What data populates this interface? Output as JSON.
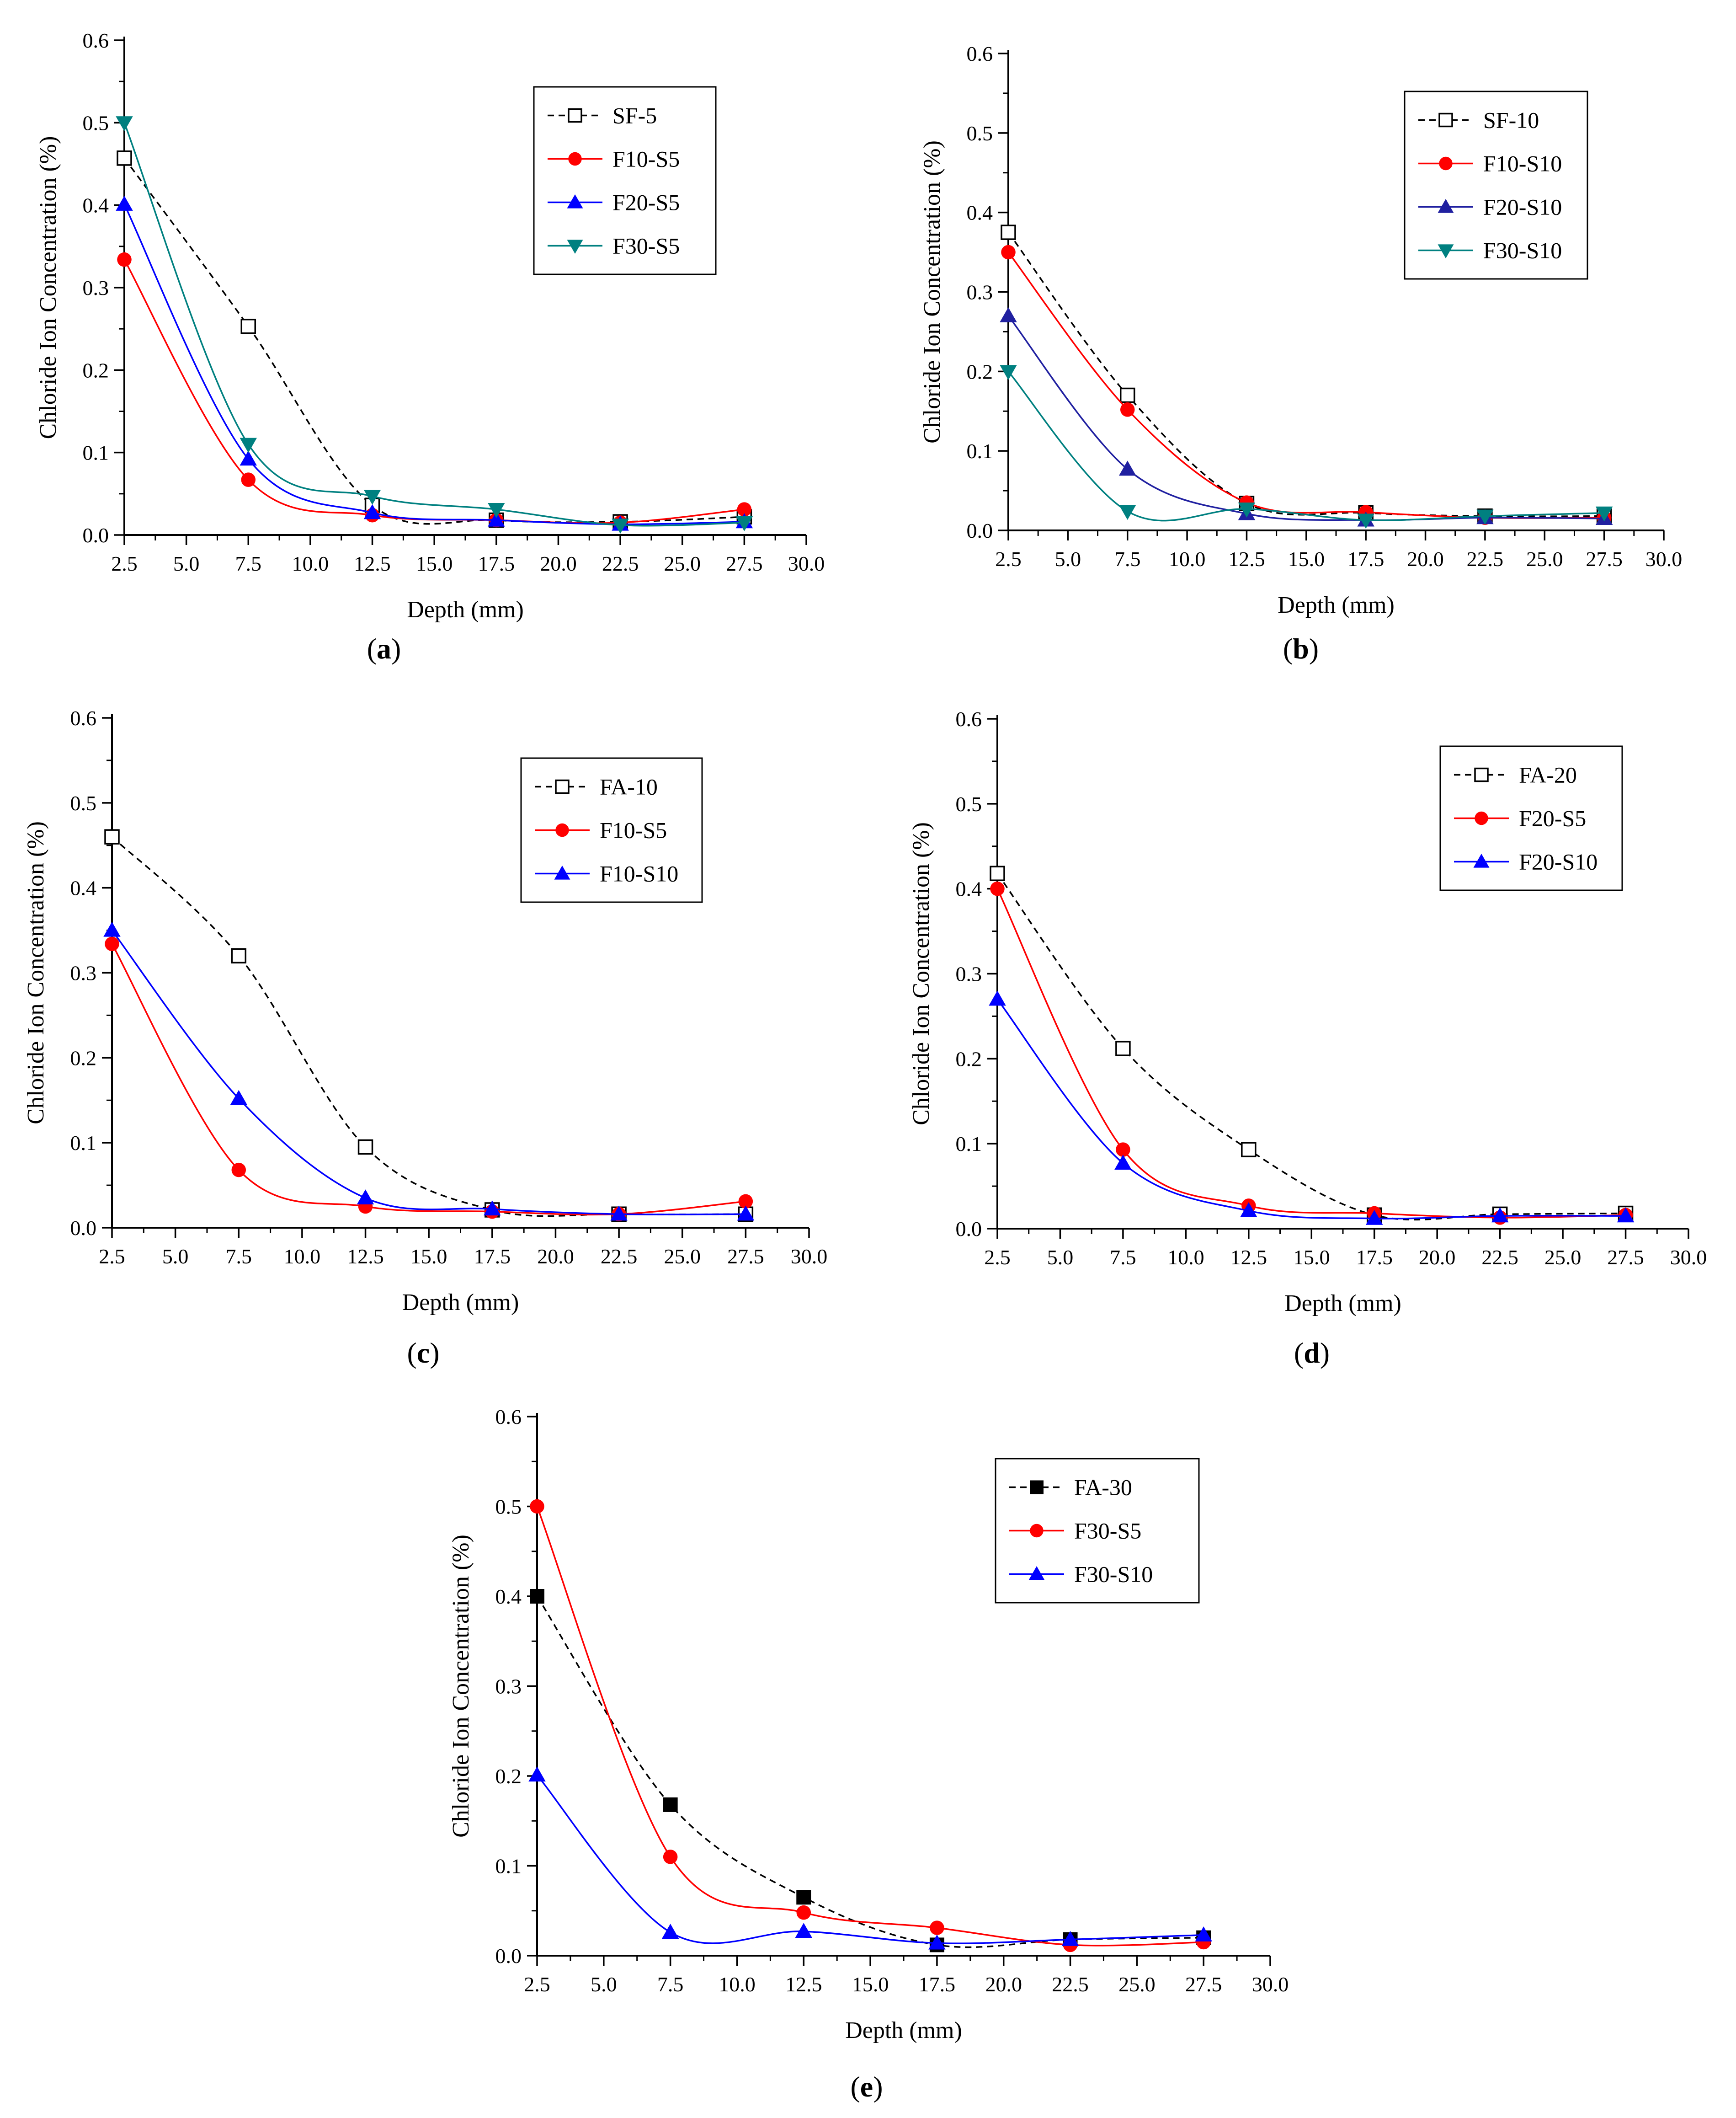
{
  "chart_data": [
    {
      "type": "line",
      "panel_label": "a",
      "xlabel": "Depth (mm)",
      "ylabel": "Chloride Ion Concentration (%)",
      "xlim": [
        2.5,
        30.0
      ],
      "ylim": [
        0.0,
        0.6
      ],
      "xticks": [
        "2.5",
        "5.0",
        "7.5",
        "10.0",
        "12.5",
        "15.0",
        "17.5",
        "20.0",
        "22.5",
        "25.0",
        "27.5",
        "30.0"
      ],
      "yticks": [
        "0.0",
        "0.1",
        "0.2",
        "0.3",
        "0.4",
        "0.5",
        "0.6"
      ],
      "legend_position": "top-right",
      "x": [
        2.5,
        7.5,
        12.5,
        17.5,
        22.5,
        27.5
      ],
      "series": [
        {
          "name": "SF-5",
          "values": [
            0.457,
            0.253,
            0.036,
            0.018,
            0.016,
            0.022
          ],
          "color": "#000000",
          "marker": "square-open",
          "dashed": true
        },
        {
          "name": "F10-S5",
          "values": [
            0.334,
            0.067,
            0.024,
            0.018,
            0.015,
            0.031
          ],
          "color": "#ff0000",
          "marker": "circle",
          "dashed": false
        },
        {
          "name": "F20-S5",
          "values": [
            0.401,
            0.092,
            0.027,
            0.018,
            0.013,
            0.016
          ],
          "color": "#0000ff",
          "marker": "triangle-up",
          "dashed": false
        },
        {
          "name": "F30-S5",
          "values": [
            0.5,
            0.11,
            0.047,
            0.031,
            0.012,
            0.015
          ],
          "color": "#008080",
          "marker": "triangle-down",
          "dashed": false
        }
      ]
    },
    {
      "type": "line",
      "panel_label": "b",
      "xlabel": "Depth (mm)",
      "ylabel": "Chloride Ion Concentration (%)",
      "xlim": [
        2.5,
        30.0
      ],
      "ylim": [
        0.0,
        0.6
      ],
      "xticks": [
        "2.5",
        "5.0",
        "7.5",
        "10.0",
        "12.5",
        "15.0",
        "17.5",
        "20.0",
        "22.5",
        "25.0",
        "27.5",
        "30.0"
      ],
      "yticks": [
        "0.0",
        "0.1",
        "0.2",
        "0.3",
        "0.4",
        "0.5",
        "0.6"
      ],
      "legend_position": "top-right",
      "x": [
        2.5,
        7.5,
        12.5,
        17.5,
        22.5,
        27.5
      ],
      "series": [
        {
          "name": "SF-10",
          "values": [
            0.375,
            0.17,
            0.034,
            0.022,
            0.018,
            0.018
          ],
          "color": "#000000",
          "marker": "square-open",
          "dashed": true
        },
        {
          "name": "F10-S10",
          "values": [
            0.35,
            0.152,
            0.035,
            0.023,
            0.016,
            0.016
          ],
          "color": "#ff0000",
          "marker": "circle",
          "dashed": false
        },
        {
          "name": "F20-S10",
          "values": [
            0.27,
            0.077,
            0.021,
            0.013,
            0.016,
            0.015
          ],
          "color": "#2020a0",
          "marker": "triangle-up",
          "dashed": false
        },
        {
          "name": "F30-S10",
          "values": [
            0.2,
            0.024,
            0.027,
            0.013,
            0.018,
            0.022
          ],
          "color": "#008080",
          "marker": "triangle-down",
          "dashed": false
        }
      ]
    },
    {
      "type": "line",
      "panel_label": "c",
      "xlabel": "Depth (mm)",
      "ylabel": "Chloride Ion Concentration (%)",
      "xlim": [
        2.5,
        30.0
      ],
      "ylim": [
        0.0,
        0.6
      ],
      "xticks": [
        "2.5",
        "5.0",
        "7.5",
        "10.0",
        "12.5",
        "15.0",
        "17.5",
        "20.0",
        "22.5",
        "25.0",
        "27.5",
        "30.0"
      ],
      "yticks": [
        "0.0",
        "0.1",
        "0.2",
        "0.3",
        "0.4",
        "0.5",
        "0.6"
      ],
      "legend_position": "top-right",
      "x": [
        2.5,
        7.5,
        12.5,
        17.5,
        22.5,
        27.5
      ],
      "series": [
        {
          "name": "FA-10",
          "values": [
            0.46,
            0.32,
            0.095,
            0.021,
            0.016,
            0.016
          ],
          "color": "#000000",
          "marker": "square-open",
          "dashed": true
        },
        {
          "name": "F10-S5",
          "values": [
            0.334,
            0.068,
            0.025,
            0.019,
            0.016,
            0.031
          ],
          "color": "#ff0000",
          "marker": "circle",
          "dashed": false
        },
        {
          "name": "F10-S10",
          "values": [
            0.35,
            0.152,
            0.035,
            0.022,
            0.016,
            0.016
          ],
          "color": "#0000ff",
          "marker": "triangle-up",
          "dashed": false
        }
      ]
    },
    {
      "type": "line",
      "panel_label": "d",
      "xlabel": "Depth (mm)",
      "ylabel": "Chloride Ion Concentration (%)",
      "xlim": [
        2.5,
        30.0
      ],
      "ylim": [
        0.0,
        0.6
      ],
      "xticks": [
        "2.5",
        "5.0",
        "7.5",
        "10.0",
        "12.5",
        "15.0",
        "17.5",
        "20.0",
        "22.5",
        "25.0",
        "27.5",
        "30.0"
      ],
      "yticks": [
        "0.0",
        "0.1",
        "0.2",
        "0.3",
        "0.4",
        "0.5",
        "0.6"
      ],
      "legend_position": "top-right",
      "x": [
        2.5,
        7.5,
        12.5,
        17.5,
        22.5,
        27.5
      ],
      "series": [
        {
          "name": "FA-20",
          "values": [
            0.418,
            0.212,
            0.093,
            0.016,
            0.017,
            0.018
          ],
          "color": "#000000",
          "marker": "square-open",
          "dashed": true
        },
        {
          "name": "F20-S5",
          "values": [
            0.4,
            0.093,
            0.027,
            0.018,
            0.013,
            0.016
          ],
          "color": "#ff0000",
          "marker": "circle",
          "dashed": false
        },
        {
          "name": "F20-S10",
          "values": [
            0.27,
            0.077,
            0.021,
            0.012,
            0.015,
            0.015
          ],
          "color": "#0000ff",
          "marker": "triangle-up",
          "dashed": false
        }
      ]
    },
    {
      "type": "line",
      "panel_label": "e",
      "xlabel": "Depth (mm)",
      "ylabel": "Chloride Ion Concentration (%)",
      "xlim": [
        2.5,
        30.0
      ],
      "ylim": [
        0.0,
        0.6
      ],
      "xticks": [
        "2.5",
        "5.0",
        "7.5",
        "10.0",
        "12.5",
        "15.0",
        "17.5",
        "20.0",
        "22.5",
        "25.0",
        "27.5",
        "30.0"
      ],
      "yticks": [
        "0.0",
        "0.1",
        "0.2",
        "0.3",
        "0.4",
        "0.5",
        "0.6"
      ],
      "legend_position": "top-right",
      "x": [
        2.5,
        7.5,
        12.5,
        17.5,
        22.5,
        27.5
      ],
      "series": [
        {
          "name": "FA-30",
          "values": [
            0.4,
            0.168,
            0.065,
            0.012,
            0.018,
            0.02
          ],
          "color": "#000000",
          "marker": "square-filled",
          "dashed": true
        },
        {
          "name": "F30-S5",
          "values": [
            0.5,
            0.11,
            0.048,
            0.031,
            0.012,
            0.015
          ],
          "color": "#ff0000",
          "marker": "circle",
          "dashed": false
        },
        {
          "name": "F30-S10",
          "values": [
            0.201,
            0.026,
            0.027,
            0.014,
            0.018,
            0.023
          ],
          "color": "#0000ff",
          "marker": "triangle-up",
          "dashed": false
        }
      ]
    }
  ]
}
